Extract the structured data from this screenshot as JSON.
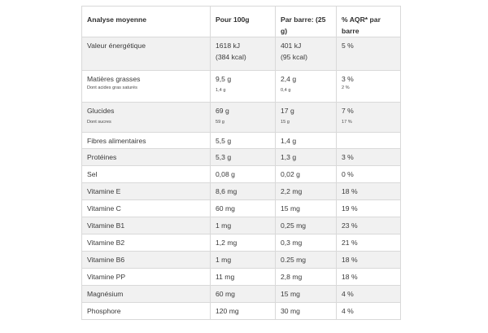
{
  "table": {
    "headers": [
      "Analyse moyenne",
      "Pour 100g",
      "Par barre: (25 g)",
      "% AQR* par barre"
    ],
    "rows": [
      {
        "label": "Valeur énergétique",
        "per100": "1618 kJ",
        "per100_2": "(384 kcal)",
        "bar": "401 kJ",
        "bar_2": "(95 kcal)",
        "aqr": "5 %"
      },
      {
        "label": "Matières grasses",
        "label_sub": "Dont acides gras saturés",
        "per100": "9,5 g",
        "per100_sub": "1,4 g",
        "bar": "2,4 g",
        "bar_sub": "0,4 g",
        "aqr": "3 %",
        "aqr_sub": "2 %"
      },
      {
        "label": "Glucides",
        "label_sub": "Dont sucres",
        "per100": "69 g",
        "per100_sub": "59 g",
        "bar": "17 g",
        "bar_sub": "15 g",
        "aqr": "7 %",
        "aqr_sub": "17 %"
      },
      {
        "label": "Fibres alimentaires",
        "per100": "5,5 g",
        "bar": "1,4 g",
        "aqr": ""
      },
      {
        "label": "Protéines",
        "per100": "5,3 g",
        "bar": "1,3 g",
        "aqr": "3 %"
      },
      {
        "label": "Sel",
        "per100": "0,08 g",
        "bar": "0,02 g",
        "aqr": "0 %"
      },
      {
        "label": "Vitamine E",
        "per100": "8,6 mg",
        "bar": "2,2 mg",
        "aqr": "18 %"
      },
      {
        "label": "Vitamine C",
        "per100": "60 mg",
        "bar": "15 mg",
        "aqr": "19 %"
      },
      {
        "label": "Vitamine B1",
        "per100": "1 mg",
        "bar": "0,25 mg",
        "aqr": "23 %"
      },
      {
        "label": "Vitamine B2",
        "per100": "1,2 mg",
        "bar": "0,3 mg",
        "aqr": "21 %"
      },
      {
        "label": "Vitamine B6",
        "per100": "1 mg",
        "bar": "0.25 mg",
        "aqr": "18 %"
      },
      {
        "label": "Vitamine PP",
        "per100": "11 mg",
        "bar": "2,8 mg",
        "aqr": "18 %"
      },
      {
        "label": "Magnésium",
        "per100": "60 mg",
        "bar": "15 mg",
        "aqr": "4 %"
      },
      {
        "label": "Phosphore",
        "per100": "120 mg",
        "bar": "30 mg",
        "aqr": "4 %"
      }
    ]
  }
}
